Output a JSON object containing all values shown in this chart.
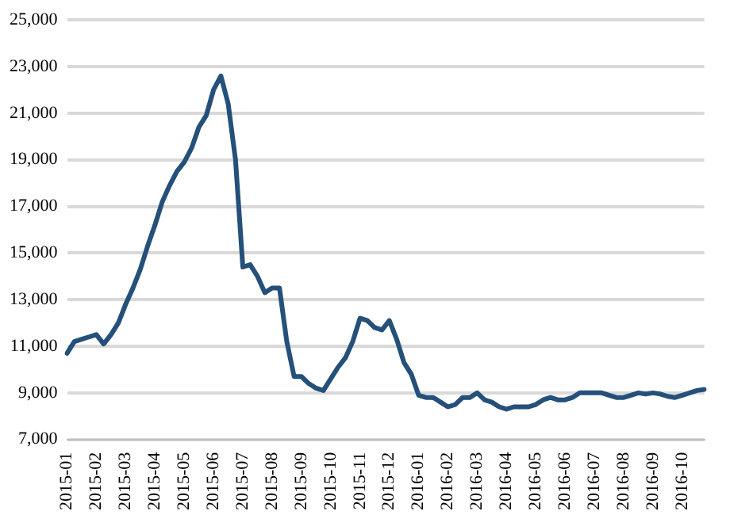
{
  "chart_data": {
    "type": "line",
    "categories": [
      "2015-01",
      null,
      null,
      null,
      "2015-02",
      null,
      null,
      null,
      "2015-03",
      null,
      null,
      null,
      "2015-04",
      null,
      null,
      null,
      "2015-05",
      null,
      null,
      null,
      "2015-06",
      null,
      null,
      null,
      "2015-07",
      null,
      null,
      null,
      "2015-08",
      null,
      null,
      null,
      "2015-09",
      null,
      null,
      null,
      "2015-10",
      null,
      null,
      null,
      "2015-11",
      null,
      null,
      null,
      "2015-12",
      null,
      null,
      null,
      "2016-01",
      null,
      null,
      null,
      "2016-02",
      null,
      null,
      null,
      "2016-03",
      null,
      null,
      null,
      "2016-04",
      null,
      null,
      null,
      "2016-05",
      null,
      null,
      null,
      "2016-06",
      null,
      null,
      null,
      "2016-07",
      null,
      null,
      null,
      "2016-08",
      null,
      null,
      null,
      "2016-09",
      null,
      null,
      null,
      "2016-10",
      null,
      null,
      null
    ],
    "series": [
      {
        "color": "#24507a",
        "values": [
          10700,
          11200,
          11300,
          11400,
          11500,
          11100,
          11500,
          12000,
          12800,
          13500,
          14300,
          15300,
          16200,
          17200,
          17900,
          18500,
          18900,
          19500,
          20400,
          20900,
          22000,
          22600,
          21400,
          19000,
          14400,
          14500,
          14000,
          13300,
          13500,
          13500,
          11200,
          9700,
          9700,
          9400,
          9200,
          9100,
          9600,
          10100,
          10500,
          11200,
          12200,
          12100,
          11800,
          11700,
          12100,
          11300,
          10300,
          9800,
          8900,
          8800,
          8800,
          8600,
          8400,
          8500,
          8800,
          8800,
          9000,
          8700,
          8600,
          8400,
          8300,
          8400,
          8400,
          8400,
          8500,
          8700,
          8800,
          8700,
          8700,
          8800,
          9000,
          9000,
          9000,
          9000,
          8900,
          8800,
          8800,
          8900,
          9000,
          8950,
          9000,
          8950,
          8850,
          8800,
          8900,
          9000,
          9100,
          9150
        ]
      }
    ],
    "ylim": [
      7000,
      25000
    ],
    "yticks": [
      {
        "value": 7000,
        "label": "7,000"
      },
      {
        "value": 9000,
        "label": "9,000"
      },
      {
        "value": 11000,
        "label": "11,000"
      },
      {
        "value": 13000,
        "label": "13,000"
      },
      {
        "value": 15000,
        "label": "15,000"
      },
      {
        "value": 17000,
        "label": "17,000"
      },
      {
        "value": 19000,
        "label": "19,000"
      },
      {
        "value": 21000,
        "label": "21,000"
      },
      {
        "value": 23000,
        "label": "23,000"
      },
      {
        "value": 25000,
        "label": "25,000"
      }
    ],
    "grid": "y",
    "legend": false,
    "marker": "none",
    "line_style": "solid"
  }
}
